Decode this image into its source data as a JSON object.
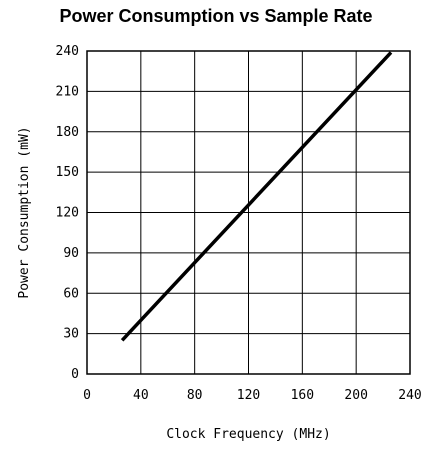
{
  "chart_data": {
    "type": "line",
    "title": "Power Consumption vs Sample Rate",
    "xlabel": "Clock Frequency (MHz)",
    "ylabel": "Power Consumption (mW)",
    "xlim": [
      0,
      240
    ],
    "ylim": [
      0,
      240
    ],
    "x_ticks": [
      0,
      40,
      80,
      120,
      160,
      200,
      240
    ],
    "y_ticks": [
      0,
      30,
      60,
      90,
      120,
      150,
      180,
      210,
      240
    ],
    "x_tick_labels": [
      "0",
      "40",
      "80",
      "120",
      "160",
      "200",
      "240"
    ],
    "y_tick_labels": [
      "0",
      "30",
      "60",
      "90",
      "120",
      "150",
      "180",
      "210",
      "240"
    ],
    "grid": true,
    "series": [
      {
        "x": [
          27,
          225
        ],
        "y": [
          26,
          238
        ]
      }
    ]
  },
  "colors": {
    "line": "#000000",
    "grid": "#000000"
  }
}
